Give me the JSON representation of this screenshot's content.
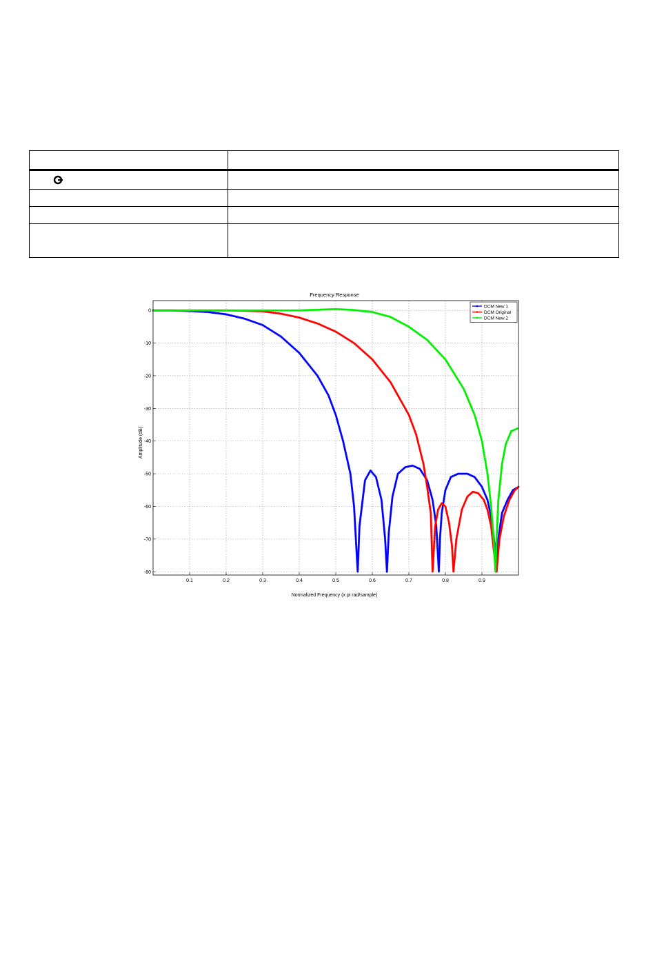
{
  "table": {
    "rows": 5
  },
  "icons": {
    "table_row1": "c-ring-icon"
  },
  "chart_data": {
    "type": "line",
    "title": "Frequency Response",
    "xlabel": "Normalized Frequency (x pi rad/sample)",
    "ylabel": "Amplitude (dB)",
    "xlim": [
      0,
      1
    ],
    "ylim": [
      -81,
      3
    ],
    "xticks": [
      "0.1",
      "0.2",
      "0.3",
      "0.4",
      "0.5",
      "0.6",
      "0.7",
      "0.8",
      "0.9"
    ],
    "yticks": [
      "0",
      "-10",
      "-20",
      "-30",
      "-40",
      "-50",
      "-60",
      "-70",
      "-80"
    ],
    "grid": true,
    "legend_position": "top-right",
    "series": [
      {
        "name": "DCM New 1",
        "color": "#0000ff",
        "x": [
          0,
          0.05,
          0.1,
          0.15,
          0.2,
          0.25,
          0.3,
          0.35,
          0.4,
          0.45,
          0.48,
          0.5,
          0.52,
          0.54,
          0.55,
          0.56,
          0.565,
          0.58,
          0.595,
          0.61,
          0.625,
          0.635,
          0.64,
          0.645,
          0.655,
          0.67,
          0.69,
          0.71,
          0.73,
          0.75,
          0.765,
          0.775,
          0.782,
          0.785,
          0.79,
          0.8,
          0.815,
          0.835,
          0.86,
          0.88,
          0.9,
          0.915,
          0.925,
          0.935,
          0.94,
          0.945,
          0.955,
          0.97,
          0.985,
          1.0
        ],
        "values": [
          0,
          0,
          -0.2,
          -0.5,
          -1.2,
          -2.5,
          -4.5,
          -8,
          -13,
          -20,
          -26,
          -32,
          -40,
          -50,
          -60,
          -80,
          -66,
          -52,
          -49,
          -51,
          -58,
          -70,
          -80,
          -68,
          -57,
          -50,
          -48,
          -47.5,
          -48.5,
          -52,
          -58,
          -66,
          -80,
          -70,
          -62,
          -55,
          -51,
          -50,
          -50,
          -51,
          -54,
          -58,
          -63,
          -72,
          -80,
          -70,
          -62,
          -58,
          -55,
          -54
        ]
      },
      {
        "name": "DCM Original",
        "color": "#ff0000",
        "x": [
          0,
          0.1,
          0.2,
          0.25,
          0.3,
          0.35,
          0.4,
          0.45,
          0.5,
          0.55,
          0.6,
          0.65,
          0.7,
          0.72,
          0.74,
          0.75,
          0.76,
          0.765,
          0.772,
          0.78,
          0.79,
          0.8,
          0.81,
          0.818,
          0.822,
          0.83,
          0.845,
          0.86,
          0.875,
          0.89,
          0.905,
          0.915,
          0.925,
          0.932,
          0.94,
          0.948,
          0.96,
          0.975,
          0.99,
          1.0
        ],
        "values": [
          0,
          0,
          0,
          -0.1,
          -0.3,
          -1,
          -2.2,
          -4,
          -6.5,
          -10,
          -15,
          -22,
          -32,
          -38,
          -47,
          -54,
          -62,
          -80,
          -66,
          -61,
          -59,
          -60,
          -65,
          -72,
          -80,
          -70,
          -61,
          -57,
          -55.5,
          -56,
          -58,
          -61,
          -66,
          -73,
          -80,
          -70,
          -63,
          -58,
          -55,
          -54
        ]
      },
      {
        "name": "DCM New 2",
        "color": "#00ee00",
        "x": [
          0,
          0.2,
          0.4,
          0.45,
          0.5,
          0.55,
          0.6,
          0.65,
          0.7,
          0.75,
          0.8,
          0.85,
          0.88,
          0.9,
          0.915,
          0.925,
          0.932,
          0.937,
          0.94,
          0.945,
          0.955,
          0.965,
          0.98,
          1.0
        ],
        "values": [
          0,
          0,
          0,
          0.2,
          0.4,
          0.1,
          -0.5,
          -2,
          -5,
          -9,
          -15,
          -24,
          -32,
          -40,
          -50,
          -60,
          -70,
          -80,
          -70,
          -58,
          -47,
          -41,
          -37,
          -36
        ]
      }
    ]
  }
}
